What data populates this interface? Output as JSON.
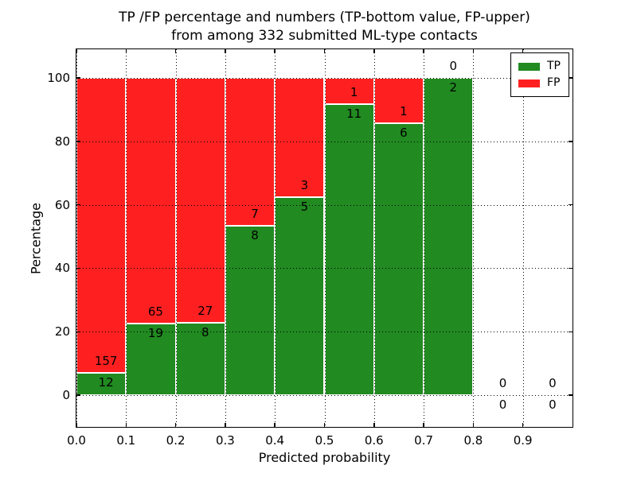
{
  "figure": {
    "title_line1": "TP /FP percentage and numbers (TP-bottom value, FP-upper)",
    "title_line2": "from among 332 submitted ML-type contacts"
  },
  "axes": {
    "xlabel": "Predicted probability",
    "ylabel": "Percentage",
    "x_tick_labels": [
      "0.0",
      "0.1",
      "0.2",
      "0.3",
      "0.4",
      "0.5",
      "0.6",
      "0.7",
      "0.8",
      "0.9"
    ],
    "y_tick_labels": [
      "0",
      "20",
      "40",
      "60",
      "80",
      "100"
    ]
  },
  "legend": {
    "items": [
      {
        "label": "TP",
        "color": "#218a21"
      },
      {
        "label": "FP",
        "color": "#fe2020"
      }
    ]
  },
  "chart_data": {
    "type": "bar",
    "stacked": true,
    "normalized_to_percent": true,
    "title": "TP /FP percentage and numbers (TP-bottom value, FP-upper) from among 332 submitted ML-type contacts",
    "xlabel": "Predicted probability",
    "ylabel": "Percentage",
    "total_contacts": 332,
    "bin_edges": [
      0.0,
      0.1,
      0.2,
      0.3,
      0.4,
      0.5,
      0.6,
      0.7,
      0.8,
      0.9,
      1.0
    ],
    "series": [
      {
        "name": "TP",
        "color": "#218a21",
        "counts": [
          12,
          19,
          8,
          8,
          5,
          11,
          6,
          2,
          0,
          0
        ]
      },
      {
        "name": "FP",
        "color": "#fe2020",
        "counts": [
          157,
          65,
          27,
          7,
          3,
          1,
          1,
          0,
          0,
          0
        ]
      }
    ],
    "tp_percent": [
      7.1,
      22.6,
      22.9,
      53.3,
      62.5,
      91.7,
      85.7,
      100.0,
      0.0,
      0.0
    ],
    "x_ticks": [
      0.0,
      0.1,
      0.2,
      0.3,
      0.4,
      0.5,
      0.6,
      0.7,
      0.8,
      0.9
    ],
    "y_ticks": [
      0,
      20,
      40,
      60,
      80,
      100
    ],
    "xlim": [
      0.0,
      1.0
    ],
    "ylim": [
      -10,
      109
    ],
    "grid": true,
    "grid_style": "dotted",
    "bar_edge_color": "#ffffff",
    "legend_position": "upper right"
  }
}
